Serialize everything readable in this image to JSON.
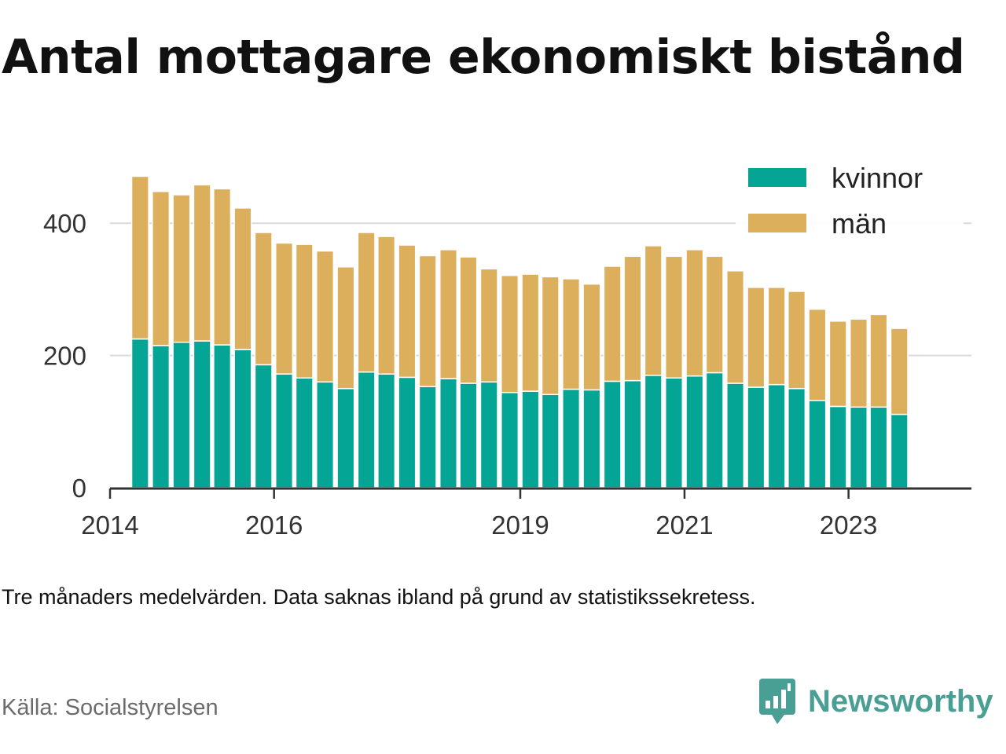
{
  "title": "Antal mottagare ekonomiskt bistånd",
  "note": "Tre månaders medelvärden. Data saknas ibland på grund av statistikssekretess.",
  "source": "Källa: Socialstyrelsen",
  "brand": {
    "name": "Newsworthy",
    "icon": "newsworthy-logo-icon"
  },
  "colors": {
    "kvinnor": "#05a596",
    "man": "#dcaf5c",
    "axis": "#333333",
    "grid": "#d9d9d9",
    "brand": "#4a9f94"
  },
  "chart_data": {
    "type": "bar",
    "stacked": true,
    "title": "Antal mottagare ekonomiskt bistånd",
    "xlabel": "",
    "ylabel": "",
    "ylim": [
      0,
      500
    ],
    "xlim": [
      "2014-01-01",
      "2024-07-01"
    ],
    "y_ticks": [
      0,
      200,
      400
    ],
    "x_ticks": [
      {
        "label": "2014",
        "date": "2014-01-01"
      },
      {
        "label": "2016",
        "date": "2016-01-01"
      },
      {
        "label": "2019",
        "date": "2019-01-01"
      },
      {
        "label": "2021",
        "date": "2021-01-01"
      },
      {
        "label": "2023",
        "date": "2023-01-01"
      }
    ],
    "grid": "horizontal",
    "legend_position": "top-right",
    "x": [
      "2014-05-15",
      "2014-08-15",
      "2014-11-15",
      "2015-02-15",
      "2015-05-15",
      "2015-08-15",
      "2015-11-15",
      "2016-02-15",
      "2016-05-15",
      "2016-08-15",
      "2016-11-15",
      "2017-02-15",
      "2017-05-15",
      "2017-08-15",
      "2017-11-15",
      "2018-02-15",
      "2018-05-15",
      "2018-08-15",
      "2018-11-15",
      "2019-02-15",
      "2019-05-15",
      "2019-08-15",
      "2019-11-15",
      "2020-02-15",
      "2020-05-15",
      "2020-08-15",
      "2020-11-15",
      "2021-02-15",
      "2021-05-15",
      "2021-08-15",
      "2021-11-15",
      "2022-02-15",
      "2022-05-15",
      "2022-08-15",
      "2022-11-15",
      "2023-02-15",
      "2023-05-15",
      "2023-08-15"
    ],
    "series": [
      {
        "name": "kvinnor",
        "key": "kvinnor",
        "values": [
          225,
          215,
          220,
          222,
          216,
          209,
          186,
          172,
          166,
          160,
          150,
          175,
          172,
          167,
          153,
          165,
          158,
          160,
          144,
          146,
          141,
          149,
          148,
          161,
          162,
          170,
          166,
          169,
          174,
          158,
          152,
          156,
          150,
          132,
          123,
          122,
          122,
          111
        ]
      },
      {
        "name": "män",
        "key": "man",
        "values": [
          246,
          233,
          223,
          236,
          236,
          214,
          200,
          198,
          202,
          198,
          184,
          211,
          208,
          200,
          198,
          195,
          191,
          171,
          177,
          177,
          178,
          167,
          160,
          174,
          188,
          196,
          184,
          191,
          176,
          170,
          151,
          147,
          147,
          138,
          129,
          133,
          140,
          130
        ]
      }
    ]
  }
}
